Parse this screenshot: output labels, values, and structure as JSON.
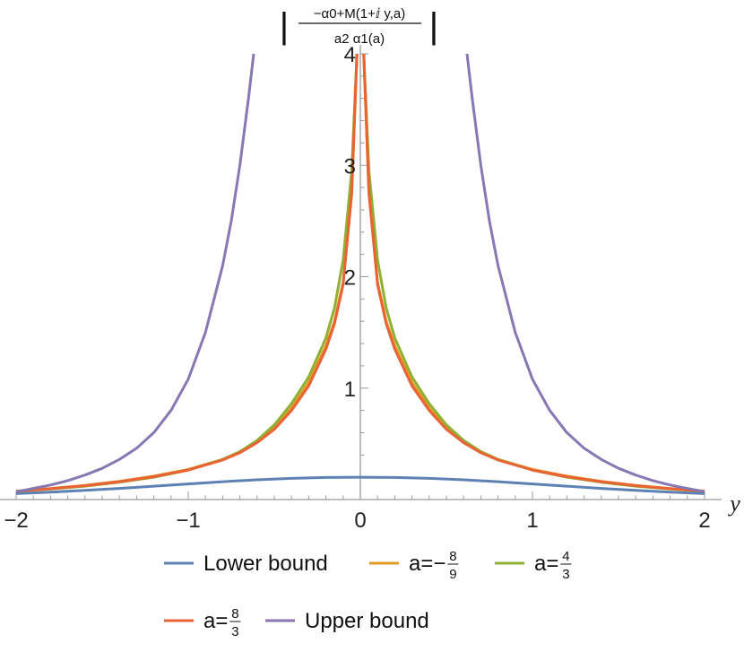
{
  "chart_data": {
    "type": "line",
    "xlabel": "y",
    "ylabel": {
      "bar_left": "|",
      "numerator": "−α0+M(1+ⅈ y,a)",
      "denominator": "a2 α1(a)",
      "bar_right": "|"
    },
    "xlim": [
      -2,
      2
    ],
    "ylim": [
      0,
      4
    ],
    "x_ticks": [
      {
        "value": -2,
        "label": "−2"
      },
      {
        "value": -1,
        "label": "−1"
      },
      {
        "value": 0,
        "label": "0"
      },
      {
        "value": 1,
        "label": "1"
      },
      {
        "value": 2,
        "label": "2"
      }
    ],
    "y_ticks": [
      {
        "value": 1,
        "label": "1"
      },
      {
        "value": 2,
        "label": "2"
      },
      {
        "value": 3,
        "label": "3"
      },
      {
        "value": 4,
        "label": "4"
      }
    ],
    "grid": false,
    "legend_position": "bottom",
    "legend": [
      {
        "key": "lower",
        "text": "Lower bound"
      },
      {
        "key": "a1",
        "text": "a=−",
        "num": "8",
        "den": "9"
      },
      {
        "key": "a2",
        "text": "a=",
        "num": "4",
        "den": "3"
      },
      {
        "key": "a3",
        "text": "a=",
        "num": "8",
        "den": "3"
      },
      {
        "key": "upper",
        "text": "Upper bound"
      }
    ],
    "series": [
      {
        "key": "lower",
        "color": "#5e81b5",
        "x": [
          0,
          0.2,
          0.4,
          0.6,
          0.8,
          1.0,
          1.2,
          1.4,
          1.6,
          1.8,
          2.0
        ],
        "y": [
          0.2,
          0.198,
          0.19,
          0.177,
          0.16,
          0.14,
          0.12,
          0.1,
          0.083,
          0.067,
          0.053
        ]
      },
      {
        "key": "a1",
        "color": "#e19c24",
        "x": [
          0.02,
          0.05,
          0.1,
          0.15,
          0.2,
          0.3,
          0.4,
          0.5,
          0.6,
          0.7,
          0.8,
          1.0,
          1.2,
          1.4,
          1.6,
          1.8,
          2.0
        ],
        "y": [
          4.0,
          2.75,
          1.95,
          1.6,
          1.38,
          1.05,
          0.82,
          0.64,
          0.52,
          0.43,
          0.36,
          0.27,
          0.21,
          0.163,
          0.127,
          0.098,
          0.076
        ]
      },
      {
        "key": "a2",
        "color": "#8fb032",
        "x": [
          0.02,
          0.05,
          0.1,
          0.15,
          0.2,
          0.3,
          0.4,
          0.5,
          0.6,
          0.7,
          0.8,
          1.0,
          1.2,
          1.4,
          1.6,
          1.8,
          2.0
        ],
        "y": [
          4.0,
          2.95,
          2.15,
          1.72,
          1.45,
          1.1,
          0.86,
          0.67,
          0.53,
          0.43,
          0.36,
          0.265,
          0.2,
          0.155,
          0.12,
          0.095,
          0.073
        ]
      },
      {
        "key": "a3",
        "color": "#eb6235",
        "x": [
          0.02,
          0.05,
          0.1,
          0.15,
          0.2,
          0.3,
          0.4,
          0.5,
          0.6,
          0.7,
          0.8,
          1.0,
          1.2,
          1.4,
          1.6,
          1.8,
          2.0
        ],
        "y": [
          4.0,
          2.75,
          1.93,
          1.58,
          1.35,
          1.02,
          0.8,
          0.63,
          0.51,
          0.42,
          0.355,
          0.265,
          0.205,
          0.16,
          0.125,
          0.097,
          0.075
        ]
      },
      {
        "key": "upper",
        "color": "#8778b3",
        "x": [
          0.62,
          0.65,
          0.7,
          0.75,
          0.8,
          0.9,
          1.0,
          1.1,
          1.2,
          1.3,
          1.4,
          1.5,
          1.6,
          1.7,
          1.8,
          1.9,
          2.0
        ],
        "y": [
          4.0,
          3.6,
          3.0,
          2.5,
          2.1,
          1.5,
          1.08,
          0.8,
          0.6,
          0.46,
          0.36,
          0.28,
          0.22,
          0.17,
          0.13,
          0.1,
          0.07
        ]
      }
    ]
  }
}
